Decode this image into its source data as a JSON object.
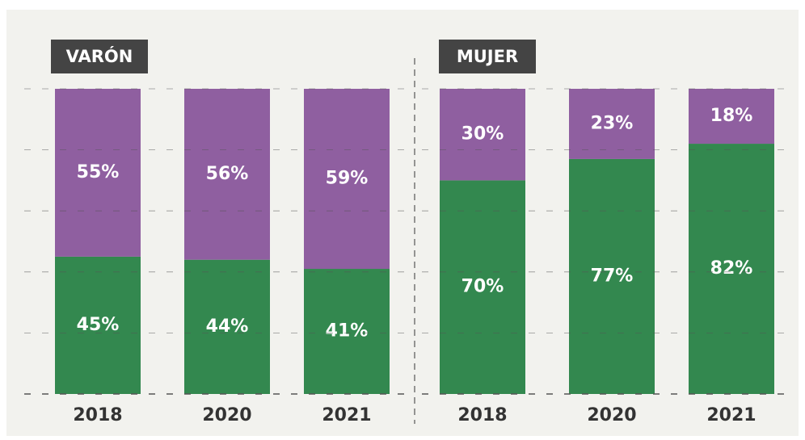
{
  "chart_data": [
    {
      "type": "bar",
      "stacked": true,
      "title": "VARÓN",
      "categories": [
        "2018",
        "2020",
        "2021"
      ],
      "series": [
        {
          "color": "#33884f",
          "values": [
            45,
            44,
            41
          ],
          "value_labels": [
            "45%",
            "44%",
            "41%"
          ]
        },
        {
          "color": "#8f5fa0",
          "values": [
            55,
            56,
            59
          ],
          "value_labels": [
            "55%",
            "56%",
            "59%"
          ]
        }
      ],
      "ylim": [
        0,
        100
      ],
      "yticks": [
        0,
        20,
        40,
        60,
        80,
        100
      ],
      "grid": true
    },
    {
      "type": "bar",
      "stacked": true,
      "title": "MUJER",
      "categories": [
        "2018",
        "2020",
        "2021"
      ],
      "series": [
        {
          "color": "#33884f",
          "values": [
            70,
            77,
            82
          ],
          "value_labels": [
            "70%",
            "77%",
            "82%"
          ]
        },
        {
          "color": "#8f5fa0",
          "values": [
            30,
            23,
            18
          ],
          "value_labels": [
            "30%",
            "23%",
            "18%"
          ]
        }
      ],
      "ylim": [
        0,
        100
      ],
      "yticks": [
        0,
        20,
        40,
        60,
        80,
        100
      ],
      "grid": true
    }
  ]
}
